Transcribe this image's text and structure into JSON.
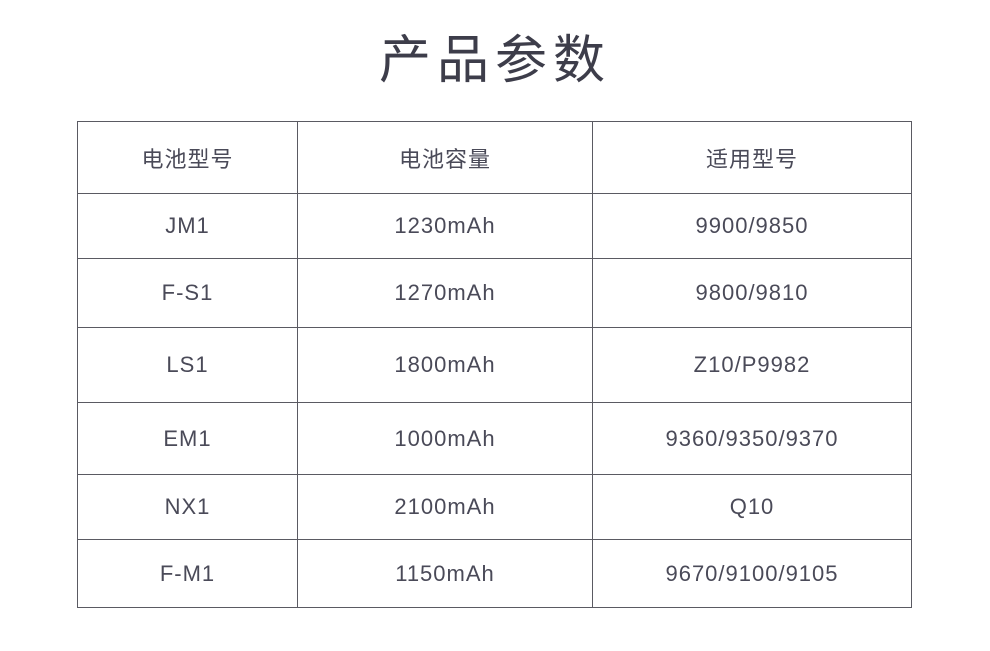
{
  "title": "产品参数",
  "table": {
    "headers": [
      "电池型号",
      "电池容量",
      "适用型号"
    ],
    "rows": [
      [
        "JM1",
        "1230mAh",
        "9900/9850"
      ],
      [
        "F-S1",
        "1270mAh",
        "9800/9810"
      ],
      [
        "LS1",
        "1800mAh",
        "Z10/P9982"
      ],
      [
        "EM1",
        "1000mAh",
        "9360/9350/9370"
      ],
      [
        "NX1",
        "2100mAh",
        "Q10"
      ],
      [
        "F-M1",
        "1150mAh",
        "9670/9100/9105"
      ]
    ]
  }
}
